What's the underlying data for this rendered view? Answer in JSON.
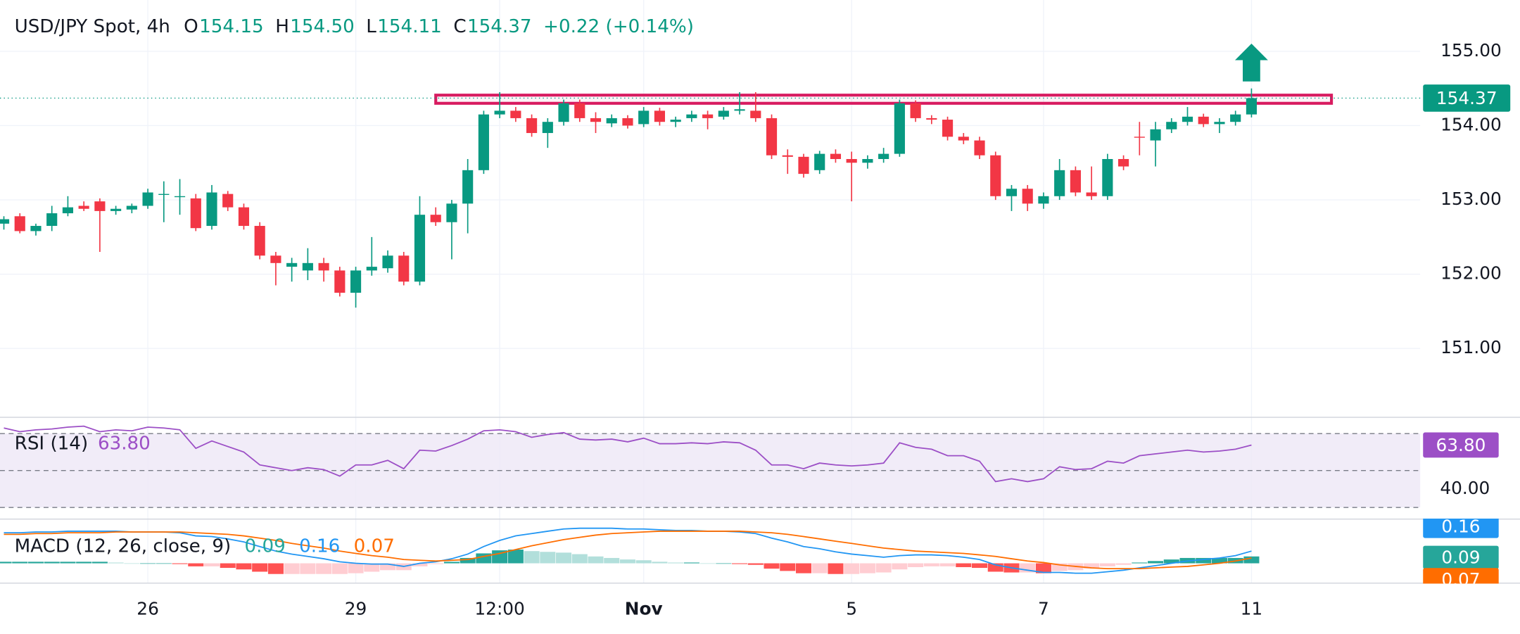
{
  "chart_data": [
    {
      "type": "candlestick",
      "title": "USD/JPY Spot, 4h",
      "header": {
        "ohlc": [
          {
            "label": "O",
            "value": "154.15"
          },
          {
            "label": "H",
            "value": "154.50"
          },
          {
            "label": "L",
            "value": "154.11"
          },
          {
            "label": "C",
            "value": "154.37"
          }
        ],
        "change": "+0.22 (+0.14%)"
      },
      "categories": [
        null,
        null,
        null,
        null,
        null,
        null,
        null,
        null,
        null,
        "26",
        null,
        null,
        null,
        null,
        null,
        null,
        null,
        null,
        null,
        null,
        null,
        null,
        "29",
        null,
        null,
        null,
        null,
        null,
        null,
        null,
        null,
        "12:00",
        null,
        null,
        null,
        null,
        null,
        null,
        null,
        null,
        "Nov",
        null,
        null,
        null,
        null,
        null,
        null,
        null,
        null,
        null,
        null,
        null,
        null,
        "5",
        null,
        null,
        null,
        null,
        null,
        null,
        null,
        null,
        null,
        null,
        null,
        "7",
        null,
        null,
        null,
        null,
        null,
        null,
        null,
        null,
        null,
        null,
        null,
        null,
        "11"
      ],
      "open": [
        152.68,
        152.78,
        152.58,
        152.65,
        152.82,
        152.92,
        152.98,
        152.85,
        152.87,
        152.92,
        153.08,
        153.05,
        153.02,
        152.65,
        153.08,
        152.9,
        152.65,
        152.25,
        152.1,
        152.05,
        152.15,
        152.05,
        151.75,
        152.05,
        152.08,
        152.25,
        151.9,
        152.8,
        152.7,
        152.95,
        153.4,
        154.15,
        154.2,
        154.1,
        153.9,
        154.05,
        154.3,
        154.1,
        154.03,
        154.1,
        154.02,
        154.2,
        154.05,
        154.1,
        154.15,
        154.12,
        154.2,
        154.2,
        154.1,
        153.6,
        153.58,
        153.4,
        153.62,
        153.55,
        153.5,
        153.55,
        153.62,
        154.3,
        154.1,
        154.08,
        153.85,
        153.8,
        153.6,
        153.05,
        153.15,
        152.95,
        153.05,
        153.4,
        153.1,
        153.05,
        153.55,
        153.85,
        153.8,
        153.95,
        154.05,
        154.12,
        154.02,
        154.05,
        154.15
      ],
      "high": [
        152.78,
        152.82,
        152.68,
        152.92,
        153.05,
        152.98,
        153.02,
        152.92,
        152.95,
        153.15,
        153.25,
        153.28,
        153.08,
        153.2,
        153.12,
        152.95,
        152.7,
        152.3,
        152.22,
        152.35,
        152.22,
        152.1,
        152.1,
        152.5,
        152.32,
        152.3,
        153.05,
        152.9,
        153.0,
        153.55,
        154.2,
        154.45,
        154.25,
        154.15,
        154.1,
        154.35,
        154.35,
        154.18,
        154.15,
        154.14,
        154.25,
        154.24,
        154.12,
        154.2,
        154.2,
        154.25,
        154.45,
        154.45,
        154.15,
        153.68,
        153.62,
        153.66,
        153.68,
        153.65,
        153.6,
        153.7,
        154.35,
        154.34,
        154.14,
        154.12,
        153.9,
        153.85,
        153.65,
        153.2,
        153.2,
        153.1,
        153.55,
        153.45,
        153.45,
        153.62,
        153.6,
        154.05,
        154.05,
        154.1,
        154.25,
        154.16,
        154.1,
        154.2,
        154.5
      ],
      "low": [
        152.6,
        152.55,
        152.52,
        152.58,
        152.78,
        152.85,
        152.3,
        152.8,
        152.82,
        152.88,
        152.7,
        152.8,
        152.58,
        152.6,
        152.85,
        152.6,
        152.2,
        151.85,
        151.9,
        151.92,
        151.9,
        151.7,
        151.55,
        151.98,
        152.02,
        151.85,
        151.85,
        152.65,
        152.2,
        152.55,
        153.35,
        154.1,
        154.05,
        153.85,
        153.7,
        154.0,
        154.05,
        153.9,
        153.98,
        153.96,
        153.98,
        154.0,
        153.98,
        154.05,
        153.95,
        154.08,
        154.15,
        154.05,
        153.55,
        153.35,
        153.3,
        153.35,
        153.5,
        152.98,
        153.42,
        153.5,
        153.58,
        154.05,
        154.02,
        153.8,
        153.75,
        153.55,
        153.0,
        152.85,
        152.85,
        152.88,
        153.0,
        153.05,
        153.0,
        153.0,
        153.4,
        153.6,
        153.45,
        153.9,
        154.0,
        153.98,
        153.9,
        154.0,
        154.11
      ],
      "close": [
        152.74,
        152.58,
        152.65,
        152.82,
        152.9,
        152.88,
        152.85,
        152.88,
        152.92,
        153.1,
        153.08,
        153.05,
        152.62,
        153.1,
        152.9,
        152.65,
        152.25,
        152.15,
        152.15,
        152.15,
        152.05,
        151.75,
        152.05,
        152.1,
        152.25,
        151.9,
        152.8,
        152.7,
        152.95,
        153.4,
        154.15,
        154.2,
        154.1,
        153.9,
        154.05,
        154.3,
        154.1,
        154.05,
        154.1,
        154.0,
        154.2,
        154.05,
        154.08,
        154.15,
        154.1,
        154.2,
        154.22,
        154.1,
        153.6,
        153.58,
        153.35,
        153.62,
        153.55,
        153.5,
        153.55,
        153.62,
        154.3,
        154.1,
        154.08,
        153.85,
        153.8,
        153.6,
        153.05,
        153.15,
        152.95,
        153.05,
        153.4,
        153.1,
        153.05,
        153.55,
        153.45,
        153.84,
        153.95,
        154.05,
        154.12,
        154.02,
        154.05,
        154.15,
        154.37
      ],
      "up_color": "#089981",
      "down_color": "#f23645",
      "ylim": [
        150.08,
        155.69
      ],
      "yticks": [
        {
          "value": 155,
          "label": "155.00"
        },
        {
          "value": 154,
          "label": "154.00"
        },
        {
          "value": 153,
          "label": "153.00"
        },
        {
          "value": 152,
          "label": "152.00"
        },
        {
          "value": 151,
          "label": "151.00"
        }
      ],
      "grid": true,
      "resistance_zone": {
        "from_index": 27,
        "to_index": 83,
        "low": 154.3,
        "high": 154.41,
        "color": "#d81b60"
      },
      "arrow": {
        "direction": "up",
        "color": "#089981"
      }
    },
    {
      "type": "line",
      "title": "RSI (14)",
      "legend_value": "63.80",
      "values": [
        73,
        71,
        72,
        72.5,
        73.5,
        74,
        71,
        72,
        71.5,
        73.5,
        73,
        72,
        62,
        66,
        63,
        60,
        53,
        51.5,
        50,
        51.5,
        50.5,
        47,
        53,
        53,
        55.5,
        51,
        61,
        60.5,
        63.5,
        67,
        71.5,
        72,
        71,
        68,
        69.5,
        70.5,
        67,
        66.5,
        67,
        65.5,
        67.5,
        64.5,
        64.5,
        65,
        64.5,
        65.5,
        65,
        61,
        53,
        53,
        51,
        54,
        53,
        52.5,
        53,
        54,
        65,
        62.5,
        61.5,
        58,
        58,
        55,
        44,
        45.5,
        44,
        45.5,
        52,
        50.5,
        51,
        55,
        54,
        58,
        59,
        60,
        61,
        60,
        60.5,
        61.5,
        63.8
      ],
      "color": "#9c4fc6",
      "band": [
        30,
        70
      ],
      "band_color": "#ede7f6",
      "levels": [
        30,
        50,
        70
      ],
      "ylim": [
        25,
        78
      ],
      "yticks": [
        {
          "value": 40,
          "label": "40.00"
        }
      ]
    },
    {
      "type": "macd",
      "title": "MACD (12, 26, close, 9)",
      "legend_values": [
        "0.09",
        "0.16",
        "0.07"
      ],
      "histogram": {
        "values": [
          0.02,
          0.02,
          0.02,
          0.02,
          0.02,
          0.02,
          0.02,
          0.01,
          0.0,
          0.0,
          0.0,
          -0.01,
          -0.04,
          -0.04,
          -0.06,
          -0.08,
          -0.11,
          -0.14,
          -0.14,
          -0.14,
          -0.14,
          -0.14,
          -0.13,
          -0.11,
          -0.09,
          -0.09,
          -0.04,
          -0.01,
          0.02,
          0.07,
          0.13,
          0.17,
          0.18,
          0.16,
          0.15,
          0.14,
          0.12,
          0.09,
          0.07,
          0.05,
          0.04,
          0.02,
          0.01,
          0.01,
          0.0,
          0.0,
          -0.01,
          -0.02,
          -0.07,
          -0.1,
          -0.13,
          -0.13,
          -0.14,
          -0.14,
          -0.13,
          -0.12,
          -0.08,
          -0.05,
          -0.04,
          -0.04,
          -0.05,
          -0.06,
          -0.11,
          -0.12,
          -0.12,
          -0.13,
          -0.1,
          -0.09,
          -0.07,
          -0.04,
          -0.02,
          0.01,
          0.03,
          0.05,
          0.07,
          0.07,
          0.07,
          0.07,
          0.09
        ],
        "colors": [
          "#26a69a",
          "#b2dfdb",
          "#ff5252",
          "#ffcdd2"
        ]
      },
      "macd_line": {
        "values": [
          0.4,
          0.4,
          0.41,
          0.41,
          0.42,
          0.42,
          0.42,
          0.42,
          0.41,
          0.41,
          0.41,
          0.4,
          0.36,
          0.35,
          0.32,
          0.28,
          0.22,
          0.16,
          0.12,
          0.09,
          0.06,
          0.02,
          0.0,
          -0.01,
          -0.01,
          -0.04,
          0.0,
          0.02,
          0.06,
          0.12,
          0.22,
          0.3,
          0.36,
          0.39,
          0.42,
          0.45,
          0.46,
          0.46,
          0.46,
          0.45,
          0.45,
          0.44,
          0.43,
          0.43,
          0.42,
          0.42,
          0.41,
          0.39,
          0.33,
          0.28,
          0.22,
          0.19,
          0.15,
          0.12,
          0.1,
          0.08,
          0.1,
          0.11,
          0.11,
          0.1,
          0.08,
          0.05,
          -0.02,
          -0.06,
          -0.09,
          -0.12,
          -0.12,
          -0.13,
          -0.13,
          -0.11,
          -0.09,
          -0.06,
          -0.03,
          0.0,
          0.03,
          0.05,
          0.07,
          0.1,
          0.16
        ],
        "color": "#2196f3"
      },
      "signal_line": {
        "values": [
          0.38,
          0.38,
          0.39,
          0.39,
          0.4,
          0.4,
          0.4,
          0.41,
          0.41,
          0.41,
          0.41,
          0.41,
          0.4,
          0.39,
          0.38,
          0.36,
          0.33,
          0.3,
          0.26,
          0.23,
          0.2,
          0.16,
          0.13,
          0.1,
          0.08,
          0.05,
          0.04,
          0.03,
          0.04,
          0.05,
          0.09,
          0.13,
          0.18,
          0.23,
          0.27,
          0.31,
          0.34,
          0.37,
          0.39,
          0.4,
          0.41,
          0.42,
          0.42,
          0.42,
          0.42,
          0.42,
          0.42,
          0.41,
          0.4,
          0.38,
          0.35,
          0.32,
          0.29,
          0.26,
          0.23,
          0.2,
          0.18,
          0.16,
          0.15,
          0.14,
          0.13,
          0.11,
          0.09,
          0.06,
          0.03,
          0.01,
          -0.02,
          -0.04,
          -0.06,
          -0.07,
          -0.07,
          -0.07,
          -0.06,
          -0.05,
          -0.04,
          -0.02,
          0.0,
          0.03,
          0.07
        ],
        "color": "#ff6d00"
      },
      "ylim": [
        -0.24,
        0.56
      ]
    }
  ]
}
